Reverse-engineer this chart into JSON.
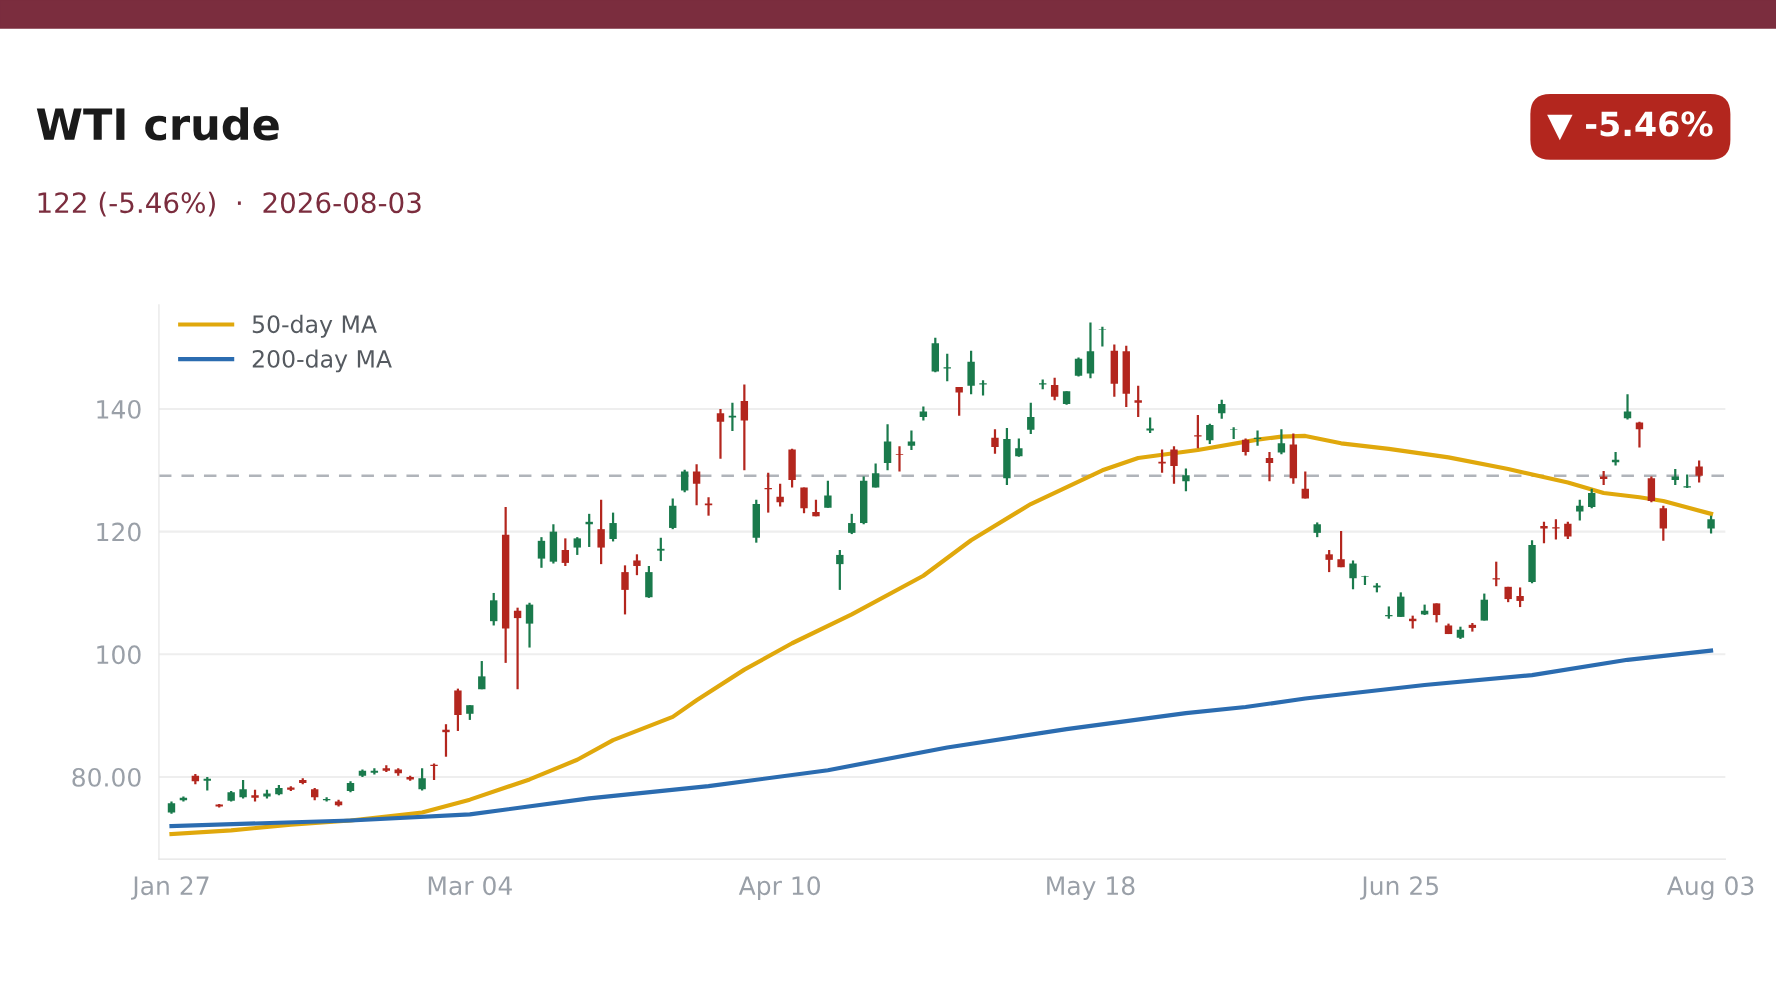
{
  "chart_data": {
    "type": "candlestick",
    "title": "WTI crude",
    "subtitle": "122 (-5.46%)  ·  2026-08-03",
    "annotations": [
      "▼ -5.46%"
    ],
    "categories": [
      "Jan 27",
      null,
      null,
      null,
      null,
      null,
      null,
      null,
      null,
      null,
      null,
      null,
      null,
      null,
      null,
      null,
      null,
      null,
      null,
      null,
      null,
      null,
      null,
      null,
      null,
      "Mar 04",
      null,
      null,
      null,
      null,
      null,
      null,
      null,
      null,
      null,
      null,
      null,
      null,
      null,
      null,
      null,
      null,
      null,
      null,
      null,
      null,
      null,
      null,
      null,
      null,
      null,
      "Apr 10",
      null,
      null,
      null,
      null,
      null,
      null,
      null,
      null,
      null,
      null,
      null,
      null,
      null,
      null,
      null,
      null,
      null,
      null,
      null,
      null,
      null,
      null,
      null,
      null,
      null,
      "May 18",
      null,
      null,
      null,
      null,
      null,
      null,
      null,
      null,
      null,
      null,
      null,
      null,
      null,
      null,
      null,
      null,
      null,
      null,
      null,
      null,
      null,
      null,
      null,
      null,
      null,
      "Jun 25",
      null,
      null,
      null,
      null,
      null,
      null,
      null,
      null,
      null,
      null,
      null,
      null,
      null,
      null,
      null,
      null,
      null,
      null,
      null,
      null,
      null,
      null,
      null,
      null,
      null,
      "Aug 03"
    ],
    "ohlc": [
      [
        74.2,
        76.0,
        74.0,
        75.7
      ],
      [
        76.2,
        76.8,
        76.0,
        76.6
      ],
      [
        80.2,
        80.5,
        78.8,
        79.3
      ],
      [
        79.4,
        80.0,
        77.8,
        79.7
      ],
      [
        75.5,
        75.6,
        75.0,
        75.2
      ],
      [
        76.1,
        77.7,
        76.0,
        77.5
      ],
      [
        76.7,
        79.5,
        76.5,
        78.0
      ],
      [
        77.0,
        77.9,
        76.0,
        76.6
      ],
      [
        76.8,
        77.9,
        76.5,
        77.3
      ],
      [
        77.2,
        78.7,
        77.0,
        78.2
      ],
      [
        78.3,
        78.5,
        77.7,
        77.9
      ],
      [
        79.5,
        79.8,
        78.8,
        79.0
      ],
      [
        78.0,
        78.2,
        76.2,
        76.7
      ],
      [
        76.2,
        76.7,
        76.0,
        76.4
      ],
      [
        76.0,
        76.3,
        75.2,
        75.4
      ],
      [
        77.7,
        79.3,
        77.5,
        79.0
      ],
      [
        80.2,
        81.2,
        80.0,
        81.0
      ],
      [
        80.7,
        81.4,
        80.4,
        81.0
      ],
      [
        81.4,
        81.9,
        80.8,
        81.0
      ],
      [
        81.2,
        81.4,
        80.2,
        80.6
      ],
      [
        80.0,
        80.2,
        79.4,
        79.6
      ],
      [
        78.0,
        81.4,
        77.8,
        79.8
      ],
      [
        82.0,
        82.2,
        79.5,
        81.8
      ],
      [
        87.7,
        88.6,
        83.3,
        87.3
      ],
      [
        94.1,
        94.4,
        87.5,
        90.1
      ],
      [
        90.3,
        91.7,
        89.3,
        91.7
      ],
      [
        94.3,
        98.9,
        94.3,
        96.4
      ],
      [
        105.4,
        110.0,
        104.7,
        108.8
      ],
      [
        119.5,
        124.0,
        98.6,
        104.2
      ],
      [
        107.1,
        107.6,
        94.3,
        105.9
      ],
      [
        105.0,
        108.4,
        101.1,
        108.1
      ],
      [
        115.6,
        119.1,
        114.1,
        118.5
      ],
      [
        115.1,
        121.2,
        114.8,
        120.0
      ],
      [
        117.0,
        118.9,
        114.4,
        114.9
      ],
      [
        117.4,
        119.1,
        116.2,
        118.9
      ],
      [
        121.2,
        122.9,
        117.5,
        121.6
      ],
      [
        120.4,
        125.2,
        114.7,
        117.4
      ],
      [
        118.8,
        123.1,
        118.4,
        121.4
      ],
      [
        113.4,
        114.5,
        106.5,
        110.5
      ],
      [
        115.3,
        116.3,
        112.9,
        114.4
      ],
      [
        109.3,
        114.4,
        109.2,
        113.4
      ],
      [
        116.9,
        119.0,
        115.2,
        117.2
      ],
      [
        120.6,
        125.4,
        120.4,
        124.2
      ],
      [
        126.7,
        130.1,
        126.4,
        129.8
      ],
      [
        129.8,
        131.0,
        124.3,
        127.8
      ],
      [
        124.6,
        125.6,
        122.6,
        124.3
      ],
      [
        139.3,
        140.0,
        131.9,
        137.9
      ],
      [
        138.6,
        141.0,
        136.4,
        138.9
      ],
      [
        141.3,
        144.0,
        130.0,
        138.1
      ],
      [
        119.0,
        125.2,
        118.2,
        124.5
      ],
      [
        127.1,
        129.6,
        123.1,
        126.9
      ],
      [
        125.7,
        127.8,
        124.1,
        124.8
      ],
      [
        133.4,
        133.5,
        127.2,
        128.4
      ],
      [
        127.2,
        127.2,
        123.0,
        123.8
      ],
      [
        123.2,
        125.2,
        122.5,
        122.5
      ],
      [
        123.9,
        128.3,
        123.9,
        125.9
      ],
      [
        114.7,
        117.0,
        110.5,
        116.2
      ],
      [
        119.8,
        122.9,
        119.6,
        121.4
      ],
      [
        121.4,
        129.0,
        121.2,
        128.3
      ],
      [
        127.2,
        131.1,
        127.2,
        129.5
      ],
      [
        131.2,
        137.5,
        130.0,
        134.7
      ],
      [
        132.6,
        133.9,
        129.8,
        132.5
      ],
      [
        134.0,
        136.5,
        133.3,
        134.7
      ],
      [
        138.7,
        140.4,
        138.1,
        139.6
      ],
      [
        146.1,
        151.6,
        146.0,
        150.7
      ],
      [
        146.6,
        149.0,
        144.5,
        146.8
      ],
      [
        143.6,
        143.6,
        138.9,
        142.7
      ],
      [
        143.8,
        149.5,
        142.4,
        147.7
      ],
      [
        144.0,
        144.7,
        142.2,
        144.2
      ],
      [
        135.3,
        136.7,
        132.7,
        133.8
      ],
      [
        128.7,
        136.9,
        127.6,
        135.1
      ],
      [
        132.3,
        135.2,
        132.2,
        133.6
      ],
      [
        136.6,
        141.0,
        135.9,
        138.7
      ],
      [
        144.0,
        144.8,
        143.2,
        144.2
      ],
      [
        143.9,
        145.1,
        141.4,
        142.0
      ],
      [
        140.8,
        142.9,
        140.7,
        142.9
      ],
      [
        145.4,
        148.4,
        145.3,
        148.2
      ],
      [
        145.8,
        154.1,
        145.0,
        149.4
      ],
      [
        152.9,
        153.4,
        150.2,
        153.0
      ],
      [
        149.5,
        150.5,
        142.0,
        144.1
      ],
      [
        149.4,
        150.3,
        140.3,
        142.5
      ],
      [
        141.4,
        143.8,
        138.7,
        141.0
      ],
      [
        136.5,
        138.6,
        136.1,
        136.8
      ],
      [
        131.4,
        133.4,
        129.6,
        131.1
      ],
      [
        133.4,
        133.9,
        127.8,
        130.7
      ],
      [
        128.2,
        130.3,
        126.6,
        129.2
      ],
      [
        135.7,
        139.0,
        133.6,
        135.5
      ],
      [
        134.9,
        137.6,
        134.3,
        137.4
      ],
      [
        139.3,
        141.5,
        138.4,
        140.8
      ],
      [
        136.6,
        137.0,
        135.1,
        136.7
      ],
      [
        135.0,
        135.2,
        132.4,
        133.0
      ],
      [
        135.1,
        136.5,
        134.0,
        135.3
      ],
      [
        132.0,
        133.0,
        128.2,
        131.2
      ],
      [
        132.9,
        136.7,
        132.6,
        134.4
      ],
      [
        134.2,
        136.0,
        127.8,
        128.7
      ],
      [
        127.0,
        129.8,
        125.4,
        125.4
      ],
      [
        119.8,
        121.5,
        119.1,
        121.2
      ],
      [
        116.3,
        117.0,
        113.4,
        115.4
      ],
      [
        115.5,
        120.1,
        114.2,
        114.2
      ],
      [
        112.4,
        115.3,
        110.6,
        114.8
      ],
      [
        112.6,
        112.8,
        111.3,
        112.7
      ],
      [
        110.9,
        111.6,
        110.1,
        111.2
      ],
      [
        106.2,
        107.8,
        105.8,
        106.4
      ],
      [
        106.1,
        110.1,
        106.1,
        109.4
      ],
      [
        105.8,
        106.3,
        104.2,
        105.4
      ],
      [
        106.5,
        108.1,
        106.4,
        107.1
      ],
      [
        108.3,
        108.3,
        105.2,
        106.4
      ],
      [
        104.7,
        105.0,
        103.3,
        103.3
      ],
      [
        102.7,
        104.5,
        102.5,
        104.0
      ],
      [
        104.8,
        105.1,
        103.7,
        104.3
      ],
      [
        105.5,
        109.9,
        105.5,
        108.9
      ],
      [
        112.4,
        115.1,
        111.1,
        112.2
      ],
      [
        111.0,
        111.0,
        108.5,
        109.0
      ],
      [
        109.5,
        110.9,
        107.7,
        108.7
      ],
      [
        111.8,
        118.6,
        111.6,
        117.8
      ],
      [
        120.9,
        121.6,
        118.1,
        120.5
      ],
      [
        120.7,
        122.0,
        118.7,
        120.5
      ],
      [
        121.3,
        121.6,
        118.8,
        119.2
      ],
      [
        123.3,
        125.2,
        121.8,
        124.2
      ],
      [
        124.0,
        127.0,
        123.8,
        126.3
      ],
      [
        129.0,
        129.9,
        127.6,
        128.6
      ],
      [
        131.3,
        133.0,
        130.8,
        131.7
      ],
      [
        138.5,
        142.4,
        138.3,
        139.6
      ],
      [
        137.8,
        137.9,
        133.7,
        136.7
      ],
      [
        128.7,
        129.0,
        124.8,
        125.0
      ],
      [
        123.8,
        124.2,
        118.5,
        120.5
      ],
      [
        128.4,
        130.2,
        127.6,
        129.0
      ],
      [
        127.2,
        129.3,
        127.1,
        127.4
      ],
      [
        130.6,
        131.6,
        128.0,
        129.1
      ],
      [
        120.5,
        122.6,
        119.7,
        122.0
      ]
    ],
    "colors": [
      "#1a7a4c",
      "#1a7a4c",
      "#b3261e",
      "#1a7a4c",
      "#b3261e",
      "#1a7a4c",
      "#1a7a4c",
      "#b3261e",
      "#1a7a4c",
      "#1a7a4c",
      "#b3261e",
      "#b3261e",
      "#b3261e",
      "#1a7a4c",
      "#b3261e",
      "#1a7a4c",
      "#1a7a4c",
      "#1a7a4c",
      "#b3261e",
      "#b3261e",
      "#b3261e",
      "#1a7a4c",
      "#b3261e",
      "#b3261e",
      "#b3261e",
      "#1a7a4c",
      "#1a7a4c",
      "#1a7a4c",
      "#b3261e",
      "#b3261e",
      "#1a7a4c",
      "#1a7a4c",
      "#1a7a4c",
      "#b3261e",
      "#1a7a4c",
      "#1a7a4c",
      "#b3261e",
      "#1a7a4c",
      "#b3261e",
      "#b3261e",
      "#1a7a4c",
      "#1a7a4c",
      "#1a7a4c",
      "#1a7a4c",
      "#b3261e",
      "#b3261e",
      "#b3261e",
      "#1a7a4c",
      "#b3261e",
      "#1a7a4c",
      "#b3261e",
      "#b3261e",
      "#b3261e",
      "#b3261e",
      "#b3261e",
      "#1a7a4c",
      "#1a7a4c",
      "#1a7a4c",
      "#1a7a4c",
      "#1a7a4c",
      "#1a7a4c",
      "#b3261e",
      "#1a7a4c",
      "#1a7a4c",
      "#1a7a4c",
      "#1a7a4c",
      "#b3261e",
      "#1a7a4c",
      "#1a7a4c",
      "#b3261e",
      "#1a7a4c",
      "#1a7a4c",
      "#1a7a4c",
      "#1a7a4c",
      "#b3261e",
      "#1a7a4c",
      "#1a7a4c",
      "#1a7a4c",
      "#1a7a4c",
      "#b3261e",
      "#b3261e",
      "#b3261e",
      "#1a7a4c",
      "#b3261e",
      "#b3261e",
      "#1a7a4c",
      "#b3261e",
      "#1a7a4c",
      "#1a7a4c",
      "#1a7a4c",
      "#b3261e",
      "#1a7a4c",
      "#b3261e",
      "#1a7a4c",
      "#b3261e",
      "#b3261e",
      "#1a7a4c",
      "#b3261e",
      "#b3261e",
      "#1a7a4c",
      "#1a7a4c",
      "#1a7a4c",
      "#1a7a4c",
      "#1a7a4c",
      "#b3261e",
      "#1a7a4c",
      "#b3261e",
      "#b3261e",
      "#1a7a4c",
      "#b3261e",
      "#1a7a4c",
      "#b3261e",
      "#b3261e",
      "#b3261e",
      "#1a7a4c",
      "#b3261e",
      "#b3261e",
      "#b3261e",
      "#1a7a4c",
      "#1a7a4c",
      "#b3261e",
      "#1a7a4c",
      "#1a7a4c",
      "#b3261e",
      "#b3261e",
      "#b3261e",
      "#1a7a4c",
      "#1a7a4c",
      "#b3261e",
      "#1a7a4c"
    ],
    "series": [
      {
        "type": "line",
        "name": "50-day MA",
        "color": "#e0a80c",
        "values": [
          70.7,
          null,
          null,
          null,
          null,
          71.3,
          null,
          null,
          null,
          null,
          72.2,
          null,
          null,
          null,
          null,
          72.9,
          null,
          null,
          null,
          null,
          null,
          74.2,
          null,
          null,
          null,
          76.3,
          null,
          null,
          null,
          null,
          79.6,
          null,
          null,
          null,
          82.8,
          null,
          null,
          86.0,
          null,
          null,
          null,
          null,
          89.8,
          null,
          92.5,
          null,
          null,
          null,
          97.5,
          null,
          null,
          null,
          101.8,
          null,
          null,
          null,
          null,
          106.5,
          null,
          null,
          null,
          null,
          null,
          112.8,
          null,
          null,
          null,
          118.6,
          null,
          null,
          null,
          null,
          124.5,
          null,
          null,
          null,
          null,
          null,
          130.0,
          null,
          null,
          132.0,
          null,
          null,
          null,
          null,
          133.3,
          null,
          null,
          null,
          null,
          135.0,
          null,
          135.5,
          null,
          135.6,
          null,
          null,
          134.4,
          null,
          null,
          null,
          133.5,
          null,
          null,
          null,
          null,
          132.1,
          null,
          null,
          null,
          null,
          130.2,
          null,
          null,
          null,
          null,
          128.0,
          null,
          null,
          126.3,
          null,
          null,
          125.6,
          null,
          125.0,
          null,
          null,
          null,
          122.9
        ]
      },
      {
        "type": "line",
        "name": "200-day MA",
        "color": "#2b6cb0",
        "values": [
          72.0,
          null,
          null,
          null,
          null,
          null,
          null,
          null,
          null,
          null,
          null,
          null,
          null,
          null,
          null,
          72.9,
          null,
          null,
          null,
          null,
          null,
          null,
          null,
          null,
          null,
          73.9,
          null,
          null,
          null,
          null,
          null,
          null,
          null,
          null,
          null,
          76.5,
          null,
          null,
          null,
          null,
          null,
          null,
          null,
          null,
          null,
          78.5,
          null,
          null,
          null,
          null,
          null,
          null,
          null,
          null,
          null,
          81.1,
          null,
          null,
          null,
          null,
          null,
          null,
          null,
          null,
          null,
          84.8,
          null,
          null,
          null,
          null,
          null,
          null,
          null,
          null,
          null,
          87.8,
          null,
          null,
          null,
          null,
          null,
          null,
          null,
          null,
          null,
          90.4,
          null,
          null,
          null,
          null,
          91.4,
          null,
          null,
          null,
          null,
          92.8,
          null,
          null,
          null,
          null,
          null,
          null,
          null,
          null,
          null,
          95.0,
          null,
          null,
          null,
          null,
          null,
          null,
          null,
          null,
          96.6,
          null,
          null,
          null,
          null,
          null,
          null,
          null,
          99.1,
          null,
          null,
          null,
          null,
          null,
          null,
          100.6
        ]
      }
    ],
    "ylim": [
      66.6,
      157
    ],
    "yticks": [
      {
        "value": 80,
        "label": "80.00"
      },
      100,
      120,
      140
    ],
    "ref_lines": [
      {
        "axis": "y",
        "value": 129.1,
        "color": "#b0b4ba",
        "line_style": "dashed"
      }
    ],
    "grid": "y",
    "legend": "top left"
  }
}
